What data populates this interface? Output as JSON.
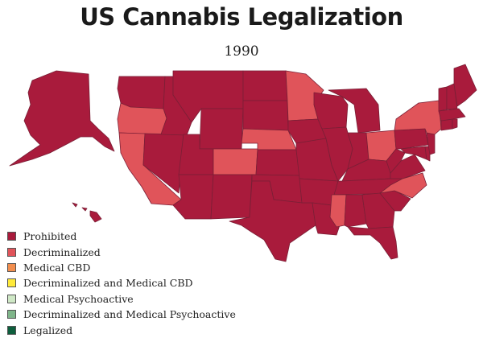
{
  "title": "US Cannabis Legalization",
  "year": "1990",
  "legend": [
    {
      "label": "Prohibited",
      "color": "#a91b3c"
    },
    {
      "label": "Decriminalized",
      "color": "#e0545a"
    },
    {
      "label": "Medical CBD",
      "color": "#f28e4e"
    },
    {
      "label": "Decriminalized and Medical CBD",
      "color": "#ffea3a"
    },
    {
      "label": "Medical Psychoactive",
      "color": "#cfe8c6"
    },
    {
      "label": "Decriminalized and Medical Psychoactive",
      "color": "#7fb58a"
    },
    {
      "label": "Legalized",
      "color": "#0e5e3d"
    }
  ],
  "states": {
    "prohibited": [
      "WA",
      "ID",
      "MT",
      "ND",
      "SD",
      "WY",
      "NV",
      "UT",
      "AZ",
      "NM",
      "KS",
      "OK",
      "TX",
      "IA",
      "MO",
      "AR",
      "LA",
      "WI",
      "IL",
      "IN",
      "MI",
      "KY",
      "TN",
      "AL",
      "GA",
      "FL",
      "SC",
      "WV",
      "VA",
      "PA",
      "MD",
      "DE",
      "NJ",
      "CT",
      "RI",
      "MA",
      "NH",
      "VT",
      "ME",
      "AK",
      "HI"
    ],
    "decriminalized": [
      "OR",
      "CA",
      "CO",
      "NE",
      "MN",
      "MS",
      "OH",
      "NC",
      "NY"
    ]
  }
}
